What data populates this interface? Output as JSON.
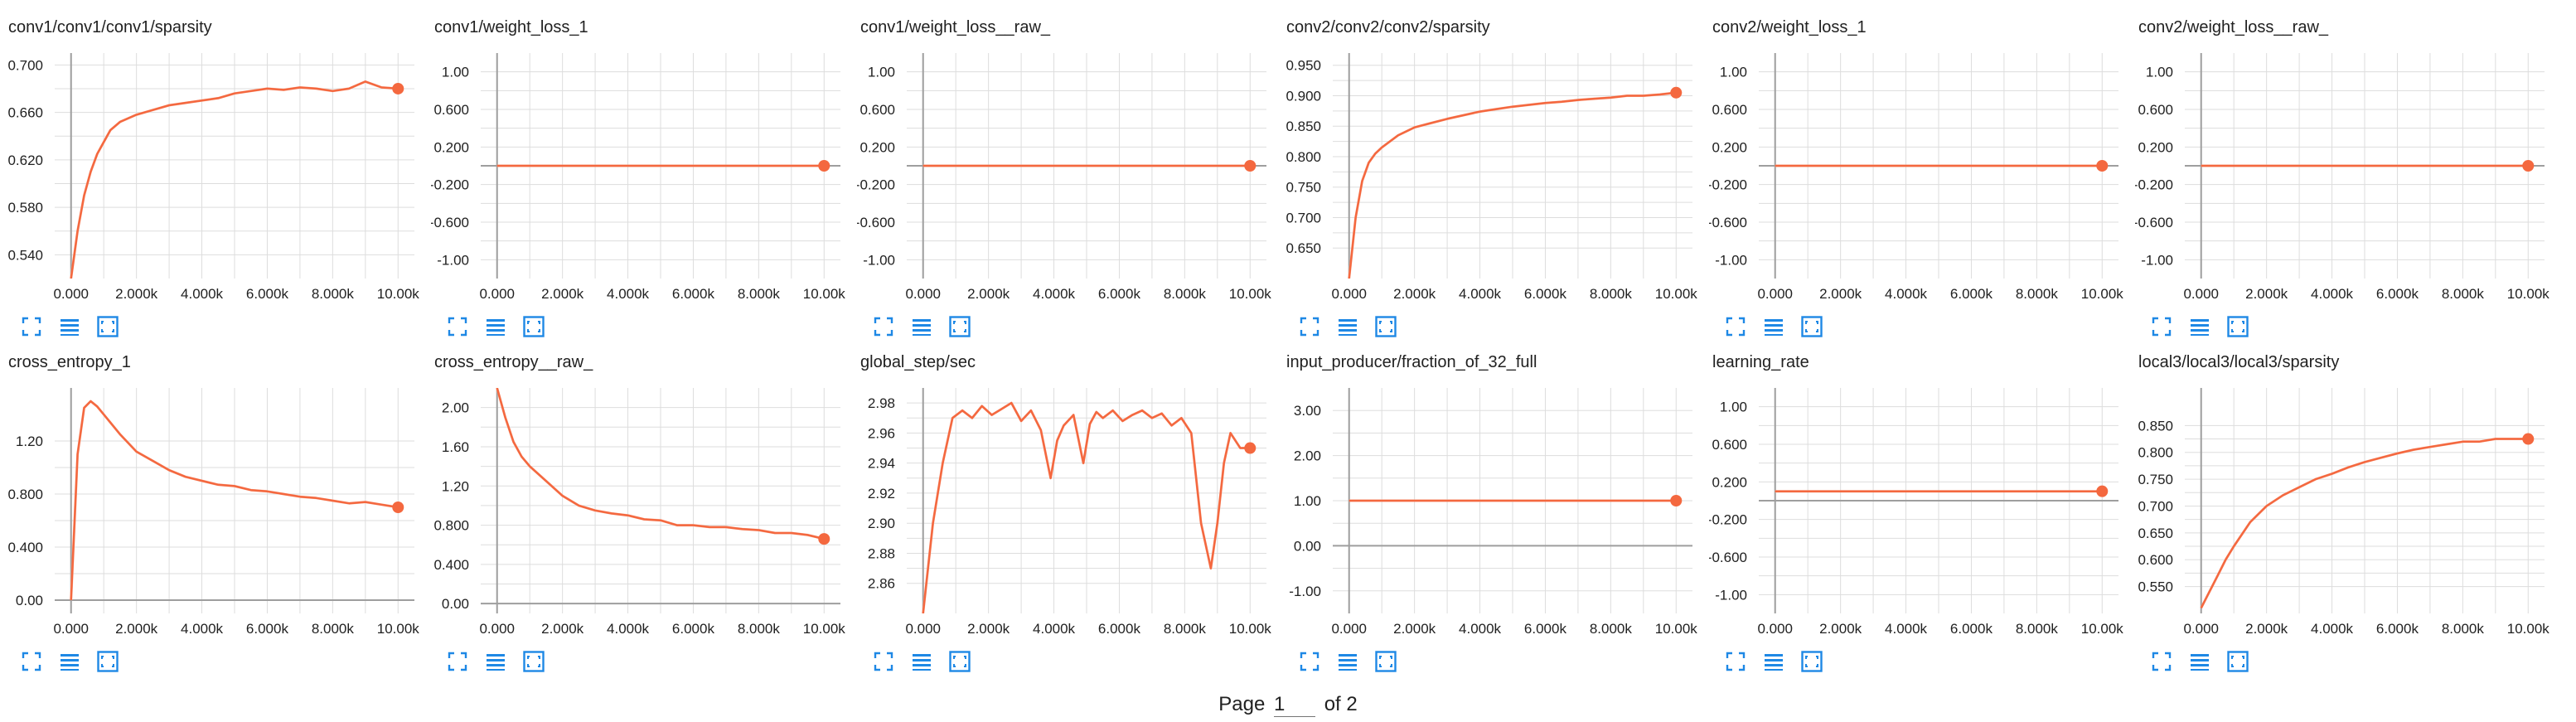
{
  "colors": {
    "line": "#f4683f",
    "raw": "#f9c2b1",
    "grid": "#dddddd",
    "axis": "#9e9e9e",
    "icon": "#1e88e5"
  },
  "toolbar_icons": [
    "fullscreen-icon",
    "lines-icon",
    "fit-domain-icon"
  ],
  "pager": {
    "prefix": "Page",
    "current": "1",
    "suffix": "of 2"
  },
  "chart_data": [
    {
      "type": "line",
      "title": "conv1/conv1/conv1/sparsity",
      "xlim": [
        -500,
        10500
      ],
      "ylim": [
        0.52,
        0.71
      ],
      "xticks": [
        0,
        2000,
        4000,
        6000,
        8000,
        10000
      ],
      "xtick_labels": [
        "0.000",
        "2.000k",
        "4.000k",
        "6.000k",
        "8.000k",
        "10.00k"
      ],
      "yticks": [
        0.54,
        0.58,
        0.62,
        0.66,
        0.7
      ],
      "ytick_labels": [
        "0.540",
        "0.580",
        "0.620",
        "0.660",
        "0.700"
      ],
      "x": [
        0,
        200,
        400,
        600,
        800,
        1000,
        1200,
        1500,
        2000,
        2500,
        3000,
        3500,
        4000,
        4500,
        5000,
        5500,
        6000,
        6500,
        7000,
        7500,
        8000,
        8500,
        9000,
        9500,
        10000
      ],
      "y": [
        0.52,
        0.56,
        0.59,
        0.61,
        0.625,
        0.635,
        0.645,
        0.652,
        0.658,
        0.662,
        0.666,
        0.668,
        0.67,
        0.672,
        0.676,
        0.678,
        0.68,
        0.679,
        0.681,
        0.68,
        0.678,
        0.68,
        0.686,
        0.681,
        0.68
      ]
    },
    {
      "type": "line",
      "title": "conv1/weight_loss_1",
      "xlim": [
        -500,
        10500
      ],
      "ylim": [
        -1.2,
        1.2
      ],
      "xticks": [
        0,
        2000,
        4000,
        6000,
        8000,
        10000
      ],
      "xtick_labels": [
        "0.000",
        "2.000k",
        "4.000k",
        "6.000k",
        "8.000k",
        "10.00k"
      ],
      "yticks": [
        -1.0,
        -0.6,
        -0.2,
        0.2,
        0.6,
        1.0
      ],
      "ytick_labels": [
        "-1.00",
        "-0.600",
        "-0.200",
        "0.200",
        "0.600",
        "1.00"
      ],
      "x": [
        0,
        10000
      ],
      "y": [
        0,
        0
      ]
    },
    {
      "type": "line",
      "title": "conv1/weight_loss__raw_",
      "xlim": [
        -500,
        10500
      ],
      "ylim": [
        -1.2,
        1.2
      ],
      "xticks": [
        0,
        2000,
        4000,
        6000,
        8000,
        10000
      ],
      "xtick_labels": [
        "0.000",
        "2.000k",
        "4.000k",
        "6.000k",
        "8.000k",
        "10.00k"
      ],
      "yticks": [
        -1.0,
        -0.6,
        -0.2,
        0.2,
        0.6,
        1.0
      ],
      "ytick_labels": [
        "-1.00",
        "-0.600",
        "-0.200",
        "0.200",
        "0.600",
        "1.00"
      ],
      "x": [
        0,
        10000
      ],
      "y": [
        0,
        0
      ]
    },
    {
      "type": "line",
      "title": "conv2/conv2/conv2/sparsity",
      "xlim": [
        -500,
        10500
      ],
      "ylim": [
        0.6,
        0.97
      ],
      "xticks": [
        0,
        2000,
        4000,
        6000,
        8000,
        10000
      ],
      "xtick_labels": [
        "0.000",
        "2.000k",
        "4.000k",
        "6.000k",
        "8.000k",
        "10.00k"
      ],
      "yticks": [
        0.65,
        0.7,
        0.75,
        0.8,
        0.85,
        0.9,
        0.95
      ],
      "ytick_labels": [
        "0.650",
        "0.700",
        "0.750",
        "0.800",
        "0.850",
        "0.900",
        "0.950"
      ],
      "x": [
        0,
        200,
        400,
        600,
        800,
        1000,
        1500,
        2000,
        2500,
        3000,
        3500,
        4000,
        4500,
        5000,
        5500,
        6000,
        6500,
        7000,
        7500,
        8000,
        8500,
        9000,
        9500,
        10000
      ],
      "y": [
        0.6,
        0.7,
        0.76,
        0.79,
        0.805,
        0.815,
        0.835,
        0.848,
        0.855,
        0.862,
        0.868,
        0.874,
        0.878,
        0.882,
        0.885,
        0.888,
        0.89,
        0.893,
        0.895,
        0.897,
        0.9,
        0.9,
        0.902,
        0.905
      ]
    },
    {
      "type": "line",
      "title": "conv2/weight_loss_1",
      "xlim": [
        -500,
        10500
      ],
      "ylim": [
        -1.2,
        1.2
      ],
      "xticks": [
        0,
        2000,
        4000,
        6000,
        8000,
        10000
      ],
      "xtick_labels": [
        "0.000",
        "2.000k",
        "4.000k",
        "6.000k",
        "8.000k",
        "10.00k"
      ],
      "yticks": [
        -1.0,
        -0.6,
        -0.2,
        0.2,
        0.6,
        1.0
      ],
      "ytick_labels": [
        "-1.00",
        "-0.600",
        "-0.200",
        "0.200",
        "0.600",
        "1.00"
      ],
      "x": [
        0,
        10000
      ],
      "y": [
        0,
        0
      ]
    },
    {
      "type": "line",
      "title": "conv2/weight_loss__raw_",
      "xlim": [
        -500,
        10500
      ],
      "ylim": [
        -1.2,
        1.2
      ],
      "xticks": [
        0,
        2000,
        4000,
        6000,
        8000,
        10000
      ],
      "xtick_labels": [
        "0.000",
        "2.000k",
        "4.000k",
        "6.000k",
        "8.000k",
        "10.00k"
      ],
      "yticks": [
        -1.0,
        -0.6,
        -0.2,
        0.2,
        0.6,
        1.0
      ],
      "ytick_labels": [
        "-1.00",
        "-0.600",
        "-0.200",
        "0.200",
        "0.600",
        "1.00"
      ],
      "x": [
        0,
        10000
      ],
      "y": [
        0,
        0
      ]
    },
    {
      "type": "line",
      "title": "cross_entropy_1",
      "xlim": [
        -500,
        10500
      ],
      "ylim": [
        -0.1,
        1.6
      ],
      "xticks": [
        0,
        2000,
        4000,
        6000,
        8000,
        10000
      ],
      "xtick_labels": [
        "0.000",
        "2.000k",
        "4.000k",
        "6.000k",
        "8.000k",
        "10.00k"
      ],
      "yticks": [
        0.0,
        0.4,
        0.8,
        1.2
      ],
      "ytick_labels": [
        "0.00",
        "0.400",
        "0.800",
        "1.20"
      ],
      "x": [
        0,
        200,
        400,
        600,
        800,
        1000,
        1500,
        2000,
        2500,
        3000,
        3500,
        4000,
        4500,
        5000,
        5500,
        6000,
        6500,
        7000,
        7500,
        8000,
        8500,
        9000,
        9500,
        10000
      ],
      "y": [
        0.0,
        1.1,
        1.45,
        1.5,
        1.46,
        1.4,
        1.25,
        1.12,
        1.05,
        0.98,
        0.93,
        0.9,
        0.87,
        0.86,
        0.83,
        0.82,
        0.8,
        0.78,
        0.77,
        0.75,
        0.73,
        0.74,
        0.72,
        0.7
      ]
    },
    {
      "type": "line",
      "title": "cross_entropy__raw_",
      "xlim": [
        -500,
        10500
      ],
      "ylim": [
        -0.1,
        2.2
      ],
      "xticks": [
        0,
        2000,
        4000,
        6000,
        8000,
        10000
      ],
      "xtick_labels": [
        "0.000",
        "2.000k",
        "4.000k",
        "6.000k",
        "8.000k",
        "10.00k"
      ],
      "yticks": [
        0.0,
        0.4,
        0.8,
        1.2,
        1.6,
        2.0
      ],
      "ytick_labels": [
        "0.00",
        "0.400",
        "0.800",
        "1.20",
        "1.60",
        "2.00"
      ],
      "x": [
        0,
        250,
        500,
        750,
        1000,
        1500,
        2000,
        2500,
        3000,
        3500,
        4000,
        4500,
        5000,
        5500,
        6000,
        6500,
        7000,
        7500,
        8000,
        8500,
        9000,
        9500,
        10000
      ],
      "y": [
        2.2,
        1.9,
        1.65,
        1.5,
        1.4,
        1.25,
        1.1,
        1.0,
        0.95,
        0.92,
        0.9,
        0.86,
        0.85,
        0.8,
        0.8,
        0.78,
        0.78,
        0.76,
        0.75,
        0.72,
        0.72,
        0.7,
        0.66
      ]
    },
    {
      "type": "line",
      "title": "global_step/sec",
      "xlim": [
        -500,
        10500
      ],
      "ylim": [
        2.84,
        2.99
      ],
      "xticks": [
        0,
        2000,
        4000,
        6000,
        8000,
        10000
      ],
      "xtick_labels": [
        "0.000",
        "2.000k",
        "4.000k",
        "6.000k",
        "8.000k",
        "10.00k"
      ],
      "yticks": [
        2.86,
        2.88,
        2.9,
        2.92,
        2.94,
        2.96,
        2.98
      ],
      "ytick_labels": [
        "2.86",
        "2.88",
        "2.90",
        "2.92",
        "2.94",
        "2.96",
        "2.98"
      ],
      "x": [
        0,
        300,
        600,
        900,
        1200,
        1500,
        1800,
        2100,
        2400,
        2700,
        3000,
        3300,
        3600,
        3900,
        4100,
        4300,
        4600,
        4900,
        5100,
        5300,
        5500,
        5800,
        6100,
        6400,
        6700,
        7000,
        7300,
        7600,
        7900,
        8200,
        8500,
        8800,
        9000,
        9200,
        9400,
        9700,
        10000
      ],
      "y": [
        2.84,
        2.9,
        2.94,
        2.97,
        2.975,
        2.97,
        2.978,
        2.972,
        2.976,
        2.98,
        2.968,
        2.975,
        2.962,
        2.93,
        2.955,
        2.965,
        2.972,
        2.94,
        2.966,
        2.974,
        2.97,
        2.975,
        2.968,
        2.972,
        2.975,
        2.97,
        2.973,
        2.965,
        2.97,
        2.96,
        2.9,
        2.87,
        2.9,
        2.94,
        2.96,
        2.95,
        2.95
      ]
    },
    {
      "type": "line",
      "title": "input_producer/fraction_of_32_full",
      "xlim": [
        -500,
        10500
      ],
      "ylim": [
        -1.5,
        3.5
      ],
      "xticks": [
        0,
        2000,
        4000,
        6000,
        8000,
        10000
      ],
      "xtick_labels": [
        "0.000",
        "2.000k",
        "4.000k",
        "6.000k",
        "8.000k",
        "10.00k"
      ],
      "yticks": [
        -1.0,
        0.0,
        1.0,
        2.0,
        3.0
      ],
      "ytick_labels": [
        "-1.00",
        "0.00",
        "1.00",
        "2.00",
        "3.00"
      ],
      "x": [
        0,
        10000
      ],
      "y": [
        1.0,
        1.0
      ]
    },
    {
      "type": "line",
      "title": "learning_rate",
      "xlim": [
        -500,
        10500
      ],
      "ylim": [
        -1.2,
        1.2
      ],
      "xticks": [
        0,
        2000,
        4000,
        6000,
        8000,
        10000
      ],
      "xtick_labels": [
        "0.000",
        "2.000k",
        "4.000k",
        "6.000k",
        "8.000k",
        "10.00k"
      ],
      "yticks": [
        -1.0,
        -0.6,
        -0.2,
        0.2,
        0.6,
        1.0
      ],
      "ytick_labels": [
        "-1.00",
        "-0.600",
        "-0.200",
        "0.200",
        "0.600",
        "1.00"
      ],
      "x": [
        0,
        10000
      ],
      "y": [
        0.1,
        0.1
      ]
    },
    {
      "type": "line",
      "title": "local3/local3/local3/sparsity",
      "xlim": [
        -500,
        10500
      ],
      "ylim": [
        0.5,
        0.92
      ],
      "xticks": [
        0,
        2000,
        4000,
        6000,
        8000,
        10000
      ],
      "xtick_labels": [
        "0.000",
        "2.000k",
        "4.000k",
        "6.000k",
        "8.000k",
        "10.00k"
      ],
      "yticks": [
        0.55,
        0.6,
        0.65,
        0.7,
        0.75,
        0.8,
        0.85
      ],
      "ytick_labels": [
        "0.550",
        "0.600",
        "0.650",
        "0.700",
        "0.750",
        "0.800",
        "0.850"
      ],
      "x": [
        0,
        250,
        500,
        750,
        1000,
        1500,
        2000,
        2500,
        3000,
        3500,
        4000,
        4500,
        5000,
        5500,
        6000,
        6500,
        7000,
        7500,
        8000,
        8500,
        9000,
        9500,
        10000
      ],
      "y": [
        0.51,
        0.54,
        0.57,
        0.6,
        0.625,
        0.67,
        0.7,
        0.72,
        0.735,
        0.75,
        0.76,
        0.772,
        0.782,
        0.79,
        0.798,
        0.805,
        0.81,
        0.815,
        0.82,
        0.82,
        0.825,
        0.825,
        0.825
      ]
    }
  ]
}
